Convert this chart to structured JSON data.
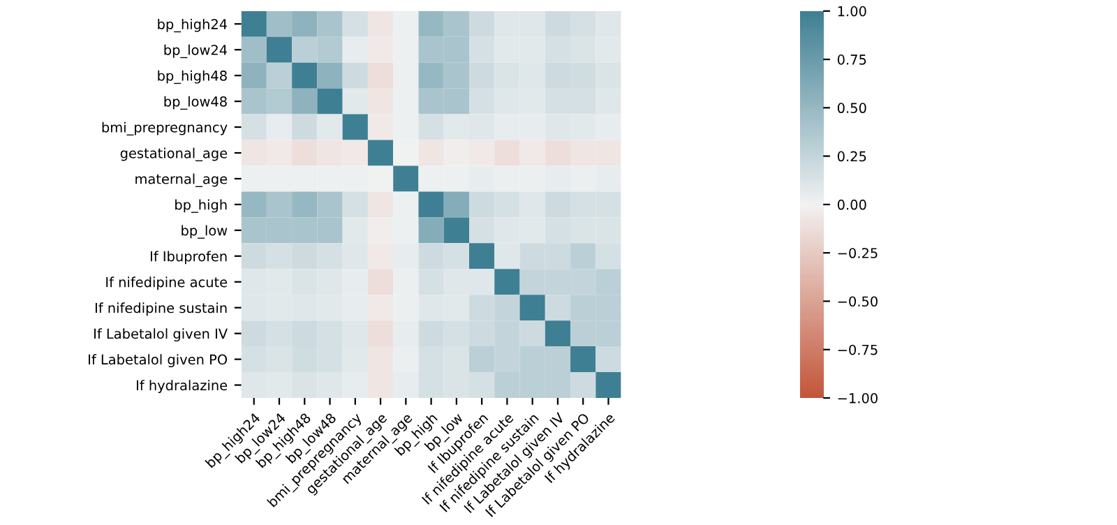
{
  "chart_data": {
    "type": "heatmap",
    "categories": [
      "bp_high24",
      "bp_low24",
      "bp_high48",
      "bp_low48",
      "bmi_prepregnancy",
      "gestational_age",
      "maternal_age",
      "bp_high",
      "bp_low",
      "If Ibuprofen",
      "If nifedipine acute",
      "If nifedipine sustain",
      "If Labetalol given IV",
      "If Labetalol given PO",
      "If hydralazine"
    ],
    "y_categories": [
      "bp_high24",
      "bp_low24",
      "bp_high48",
      "bp_low48",
      "bmi_prepregnancy",
      "gestational_age",
      "maternal_age",
      "bp_high",
      "bp_low",
      "If Ibuprofen",
      "If nifedipine acute",
      "If nifedipine sustain",
      "If Labetalol given IV",
      "If Labetalol given PO",
      "If hydralazine"
    ],
    "cells": [
      [
        1,
        0.45,
        0.55,
        0.4,
        0.15,
        -0.08,
        0.02,
        0.5,
        0.4,
        0.2,
        0.1,
        0.1,
        0.2,
        0.15,
        0.1
      ],
      [
        0.45,
        1,
        0.3,
        0.35,
        0.05,
        -0.05,
        0.02,
        0.4,
        0.4,
        0.15,
        0.08,
        0.08,
        0.15,
        0.12,
        0.08
      ],
      [
        0.55,
        0.3,
        1,
        0.55,
        0.2,
        -0.12,
        0.02,
        0.5,
        0.4,
        0.2,
        0.12,
        0.1,
        0.2,
        0.18,
        0.12
      ],
      [
        0.4,
        0.35,
        0.55,
        1,
        0.08,
        -0.08,
        0.02,
        0.4,
        0.4,
        0.15,
        0.1,
        0.08,
        0.15,
        0.15,
        0.1
      ],
      [
        0.15,
        0.05,
        0.2,
        0.08,
        1,
        -0.05,
        0.02,
        0.15,
        0.08,
        0.1,
        0.05,
        0.05,
        0.1,
        0.08,
        0.05
      ],
      [
        -0.08,
        -0.05,
        -0.12,
        -0.08,
        -0.05,
        1,
        0,
        -0.08,
        -0.03,
        -0.05,
        -0.12,
        -0.05,
        -0.12,
        -0.08,
        -0.08
      ],
      [
        0.02,
        0.02,
        0.02,
        0.02,
        0.02,
        0,
        1,
        0.02,
        0.02,
        0.05,
        0.03,
        0.03,
        0.05,
        0.03,
        0.05
      ],
      [
        0.5,
        0.4,
        0.5,
        0.4,
        0.15,
        -0.08,
        0.02,
        1,
        0.6,
        0.2,
        0.15,
        0.1,
        0.2,
        0.15,
        0.15
      ],
      [
        0.4,
        0.4,
        0.4,
        0.4,
        0.08,
        -0.03,
        0.02,
        0.6,
        1,
        0.15,
        0.1,
        0.08,
        0.15,
        0.12,
        0.12
      ],
      [
        0.2,
        0.15,
        0.2,
        0.15,
        0.1,
        -0.05,
        0.05,
        0.2,
        0.15,
        1,
        0.1,
        0.2,
        0.2,
        0.3,
        0.15
      ],
      [
        0.1,
        0.08,
        0.12,
        0.1,
        0.05,
        -0.12,
        0.03,
        0.15,
        0.1,
        0.1,
        1,
        0.25,
        0.25,
        0.25,
        0.3
      ],
      [
        0.1,
        0.08,
        0.1,
        0.08,
        0.05,
        -0.05,
        0.03,
        0.1,
        0.08,
        0.2,
        0.25,
        1,
        0.2,
        0.3,
        0.3
      ],
      [
        0.2,
        0.15,
        0.2,
        0.15,
        0.1,
        -0.12,
        0.05,
        0.2,
        0.15,
        0.2,
        0.25,
        0.2,
        1,
        0.3,
        0.3
      ],
      [
        0.15,
        0.12,
        0.18,
        0.15,
        0.08,
        -0.08,
        0.03,
        0.15,
        0.12,
        0.3,
        0.25,
        0.3,
        0.3,
        1,
        0.2
      ],
      [
        0.1,
        0.08,
        0.12,
        0.1,
        0.05,
        -0.08,
        0.05,
        0.15,
        0.12,
        0.15,
        0.3,
        0.3,
        0.3,
        0.2,
        1
      ]
    ],
    "clim": [
      -1,
      1
    ],
    "cticks": [
      {
        "value": -1,
        "label": "−1.00"
      },
      {
        "value": -0.75,
        "label": "−0.75"
      },
      {
        "value": -0.5,
        "label": "−0.50"
      },
      {
        "value": -0.25,
        "label": "−0.25"
      },
      {
        "value": 0,
        "label": "0.00"
      },
      {
        "value": 0.25,
        "label": "0.25"
      },
      {
        "value": 0.5,
        "label": "0.50"
      },
      {
        "value": 0.75,
        "label": "0.75"
      },
      {
        "value": 1,
        "label": "1.00"
      }
    ]
  }
}
